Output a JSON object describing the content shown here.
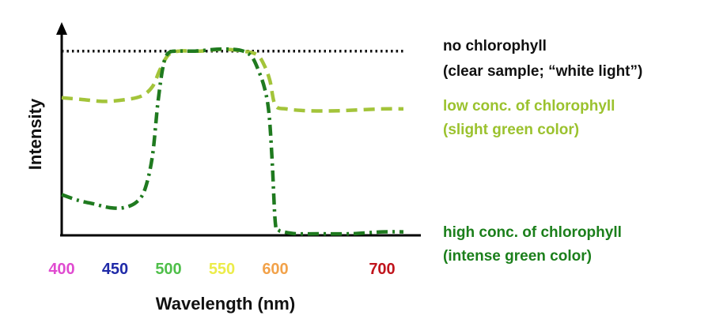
{
  "chart_data": {
    "type": "line",
    "xlabel": "Wavelength (nm)",
    "ylabel": "Intensity",
    "xlim": [
      400,
      720
    ],
    "ylim": [
      0,
      1
    ],
    "grid": false,
    "legend_position": "right",
    "x_ticks": [
      {
        "value": 400,
        "label": "400",
        "color": "#e04bd0"
      },
      {
        "value": 450,
        "label": "450",
        "color": "#1f2aa8"
      },
      {
        "value": 500,
        "label": "500",
        "color": "#4fbf4a"
      },
      {
        "value": 550,
        "label": "550",
        "color": "#ecec4a"
      },
      {
        "value": 600,
        "label": "600",
        "color": "#f2a24a"
      },
      {
        "value": 700,
        "label": "700",
        "color": "#c0141c"
      }
    ],
    "series": [
      {
        "name": "no chlorophyll",
        "sublabel": "(clear sample; “white light”)",
        "color": "#111111",
        "label_color": "#111111",
        "style": "dotted",
        "x": [
          400,
          430,
          460,
          490,
          500,
          520,
          550,
          580,
          600,
          640,
          680,
          720
        ],
        "y": [
          0.98,
          0.98,
          0.98,
          0.98,
          0.98,
          0.98,
          0.98,
          0.98,
          0.98,
          0.98,
          0.98,
          0.98
        ]
      },
      {
        "name": "low conc. of chlorophyll",
        "sublabel": "(slight green color)",
        "color": "#a3c43a",
        "label_color": "#9bc22e",
        "style": "dashed",
        "x": [
          400,
          420,
          440,
          460,
          475,
          485,
          492,
          500,
          510,
          530,
          550,
          570,
          583,
          590,
          595,
          600,
          610,
          630,
          660,
          700,
          720
        ],
        "y": [
          0.73,
          0.72,
          0.71,
          0.72,
          0.74,
          0.79,
          0.88,
          0.96,
          0.98,
          0.98,
          0.99,
          0.98,
          0.96,
          0.9,
          0.82,
          0.69,
          0.67,
          0.66,
          0.66,
          0.67,
          0.67
        ]
      },
      {
        "name": "high conc. of chlorophyll",
        "sublabel": "(intense green color)",
        "color": "#1f7a1f",
        "label_color": "#1b7f1b",
        "style": "dashdot",
        "x": [
          400,
          415,
          430,
          445,
          458,
          470,
          478,
          485,
          490,
          495,
          500,
          510,
          525,
          545,
          560,
          570,
          578,
          584,
          590,
          594,
          597,
          600,
          603,
          608,
          620,
          640,
          670,
          700,
          720
        ],
        "y": [
          0.21,
          0.18,
          0.16,
          0.14,
          0.14,
          0.17,
          0.24,
          0.42,
          0.7,
          0.9,
          0.97,
          0.98,
          0.98,
          0.99,
          0.99,
          0.98,
          0.95,
          0.88,
          0.78,
          0.65,
          0.4,
          0.06,
          0.02,
          0.01,
          0.0,
          0.0,
          0.0,
          0.01,
          0.01
        ]
      }
    ]
  }
}
